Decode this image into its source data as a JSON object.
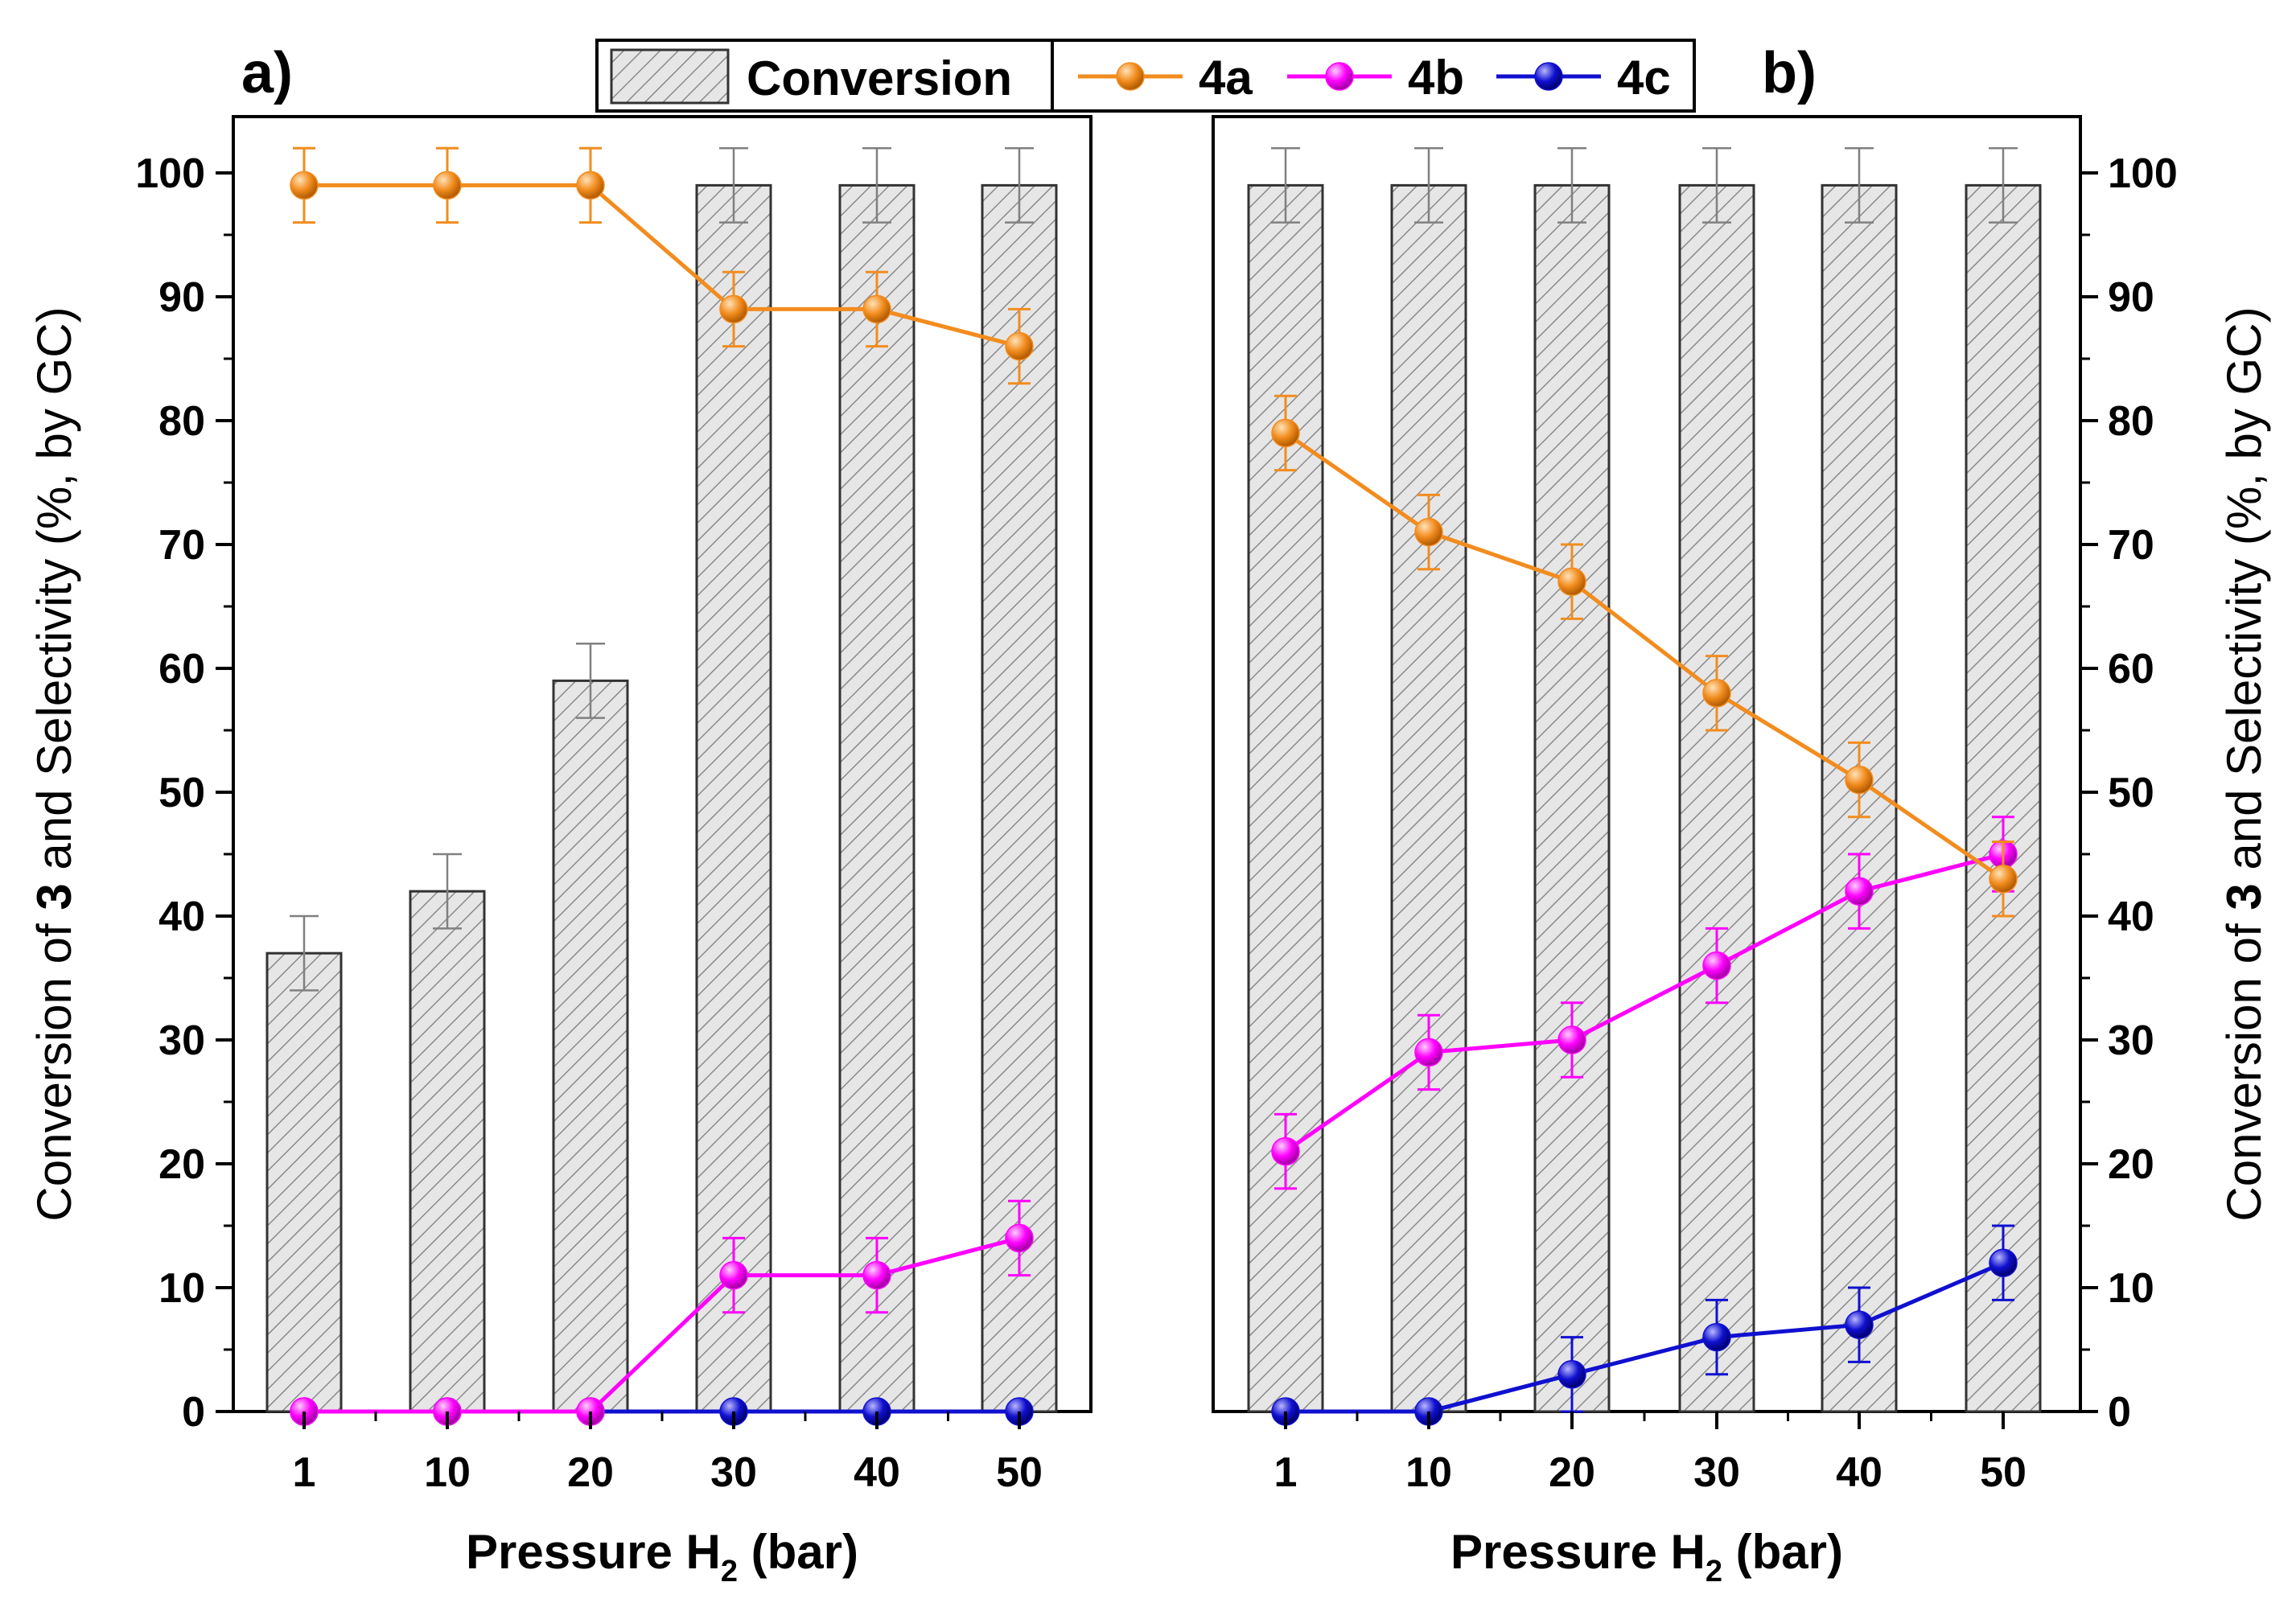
{
  "chart_data": [
    {
      "type": "bar+line",
      "panel_label": "a)",
      "categories": [
        "1",
        "10",
        "20",
        "30",
        "40",
        "50"
      ],
      "xlabel_main": "Pressure H",
      "xlabel_sub": "2",
      "xlabel_tail": " (bar)",
      "ylabel_pre": "Conversion of ",
      "ylabel_bold": "3",
      "ylabel_post": " and Selectivity (%, by GC)",
      "ylabel_side": "left",
      "ylim": [
        0,
        100
      ],
      "yticks": [
        0,
        10,
        20,
        30,
        40,
        50,
        60,
        70,
        80,
        90,
        100
      ],
      "bars": {
        "name": "Conversion",
        "values": [
          37,
          42,
          59,
          99,
          99,
          99
        ],
        "errors": [
          3,
          3,
          3,
          3,
          3,
          3
        ]
      },
      "series": [
        {
          "name": "4a",
          "color": "#F28C1E",
          "values": [
            99,
            99,
            99,
            89,
            89,
            86
          ],
          "errors": [
            3,
            3,
            3,
            3,
            3,
            3
          ]
        },
        {
          "name": "4b",
          "color": "#FF00FF",
          "values": [
            0,
            0,
            0,
            11,
            11,
            14
          ],
          "errors": [
            null,
            null,
            null,
            3,
            3,
            3
          ]
        },
        {
          "name": "4c",
          "color": "#1010D0",
          "values": [
            0,
            0,
            0,
            0,
            0,
            0
          ],
          "errors": [
            null,
            null,
            null,
            null,
            null,
            null
          ]
        }
      ]
    },
    {
      "type": "bar+line",
      "panel_label": "b)",
      "categories": [
        "1",
        "10",
        "20",
        "30",
        "40",
        "50"
      ],
      "xlabel_main": "Pressure H",
      "xlabel_sub": "2",
      "xlabel_tail": " (bar)",
      "ylabel_pre": "Conversion of ",
      "ylabel_bold": "3",
      "ylabel_post": " and Selectivity (%, by GC)",
      "ylabel_side": "right",
      "ylim": [
        0,
        100
      ],
      "yticks": [
        0,
        10,
        20,
        30,
        40,
        50,
        60,
        70,
        80,
        90,
        100
      ],
      "bars": {
        "name": "Conversion",
        "values": [
          99,
          99,
          99,
          99,
          99,
          99
        ],
        "errors": [
          3,
          3,
          3,
          3,
          3,
          3
        ]
      },
      "series": [
        {
          "name": "4a",
          "color": "#F28C1E",
          "values": [
            79,
            71,
            67,
            58,
            51,
            43
          ],
          "errors": [
            3,
            3,
            3,
            3,
            3,
            3
          ]
        },
        {
          "name": "4b",
          "color": "#FF00FF",
          "values": [
            21,
            29,
            30,
            36,
            42,
            45
          ],
          "errors": [
            3,
            3,
            3,
            3,
            3,
            3
          ]
        },
        {
          "name": "4c",
          "color": "#1010D0",
          "values": [
            0,
            0,
            3,
            6,
            7,
            12
          ],
          "errors": [
            null,
            null,
            3,
            3,
            3,
            3
          ]
        }
      ]
    }
  ],
  "legend": {
    "bar_label": "Conversion",
    "items": [
      {
        "label": "4a",
        "color": "#F28C1E"
      },
      {
        "label": "4b",
        "color": "#FF00FF"
      },
      {
        "label": "4c",
        "color": "#1010D0"
      }
    ]
  },
  "colors": {
    "bar_fill": "#E6E6E6",
    "bar_hatch": "#8A8A8A",
    "bar_error": "#808080",
    "axis": "#000000"
  }
}
